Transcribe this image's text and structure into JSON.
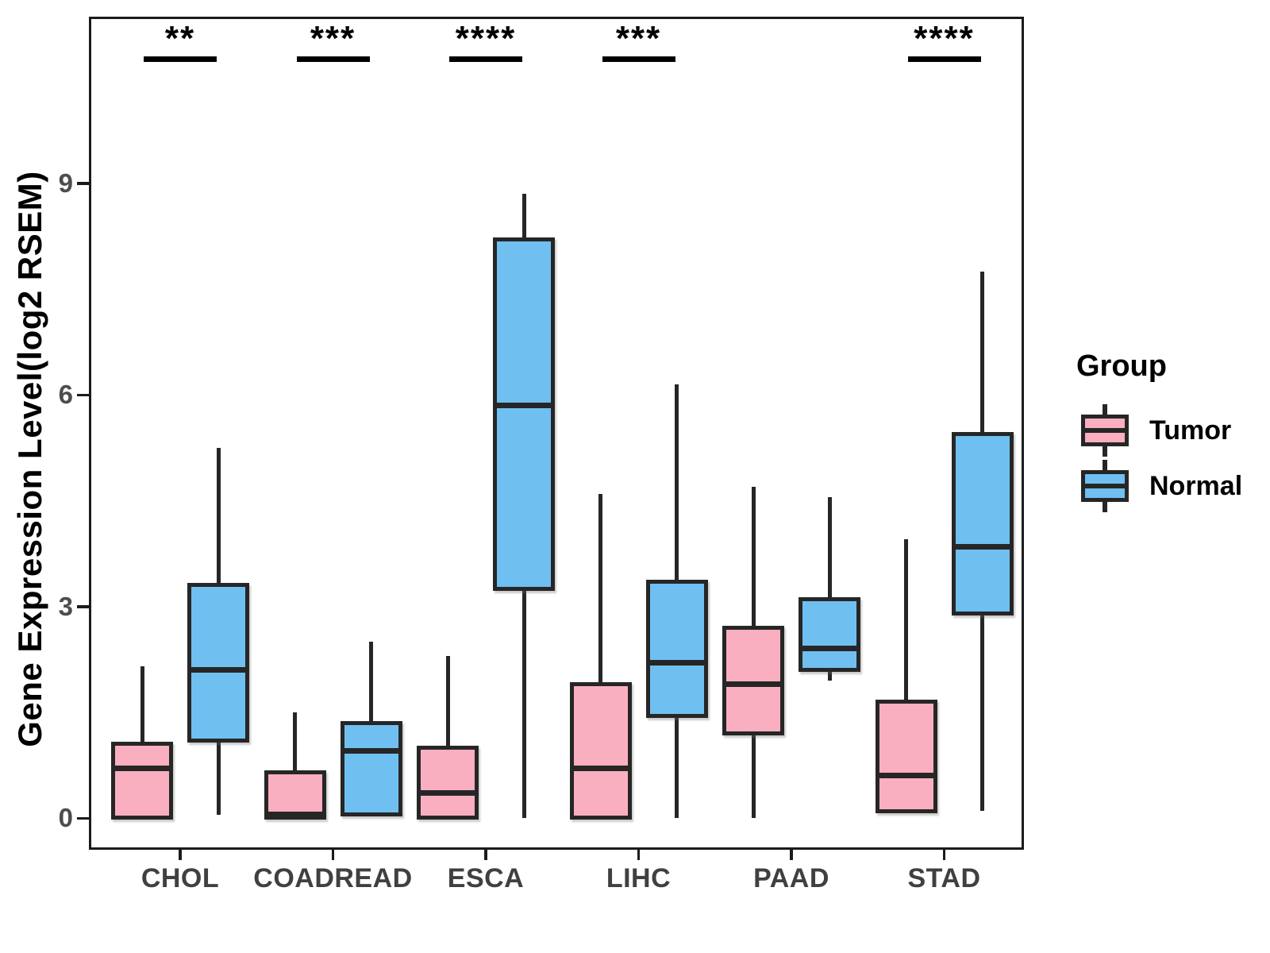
{
  "figure": {
    "background": "#ffffff"
  },
  "y_axis": {
    "title": "Gene Expression Level(log2 RSEM)",
    "tick_labels": [
      "0",
      "3",
      "6",
      "9"
    ]
  },
  "legend": {
    "title": "Group",
    "items": [
      {
        "label": "Tumor",
        "color": "#FAAFC0"
      },
      {
        "label": "Normal",
        "color": "#6FBFF1"
      }
    ]
  },
  "colors": {
    "tumor_fill": "#FAAFC0",
    "normal_fill": "#6FBFF1",
    "stroke": "#262626",
    "axis_text": "#4d4d4d",
    "significance": "#000000"
  },
  "chart_data": {
    "type": "boxplot",
    "title": "",
    "xlabel": "",
    "ylabel": "Gene Expression Level(log2 RSEM)",
    "categories": [
      "CHOL",
      "COADREAD",
      "ESCA",
      "LIHC",
      "PAAD",
      "STAD"
    ],
    "yticks": [
      0,
      3,
      6,
      9
    ],
    "ylim": [
      -0.45,
      11.35
    ],
    "grid": false,
    "legend_position": "right",
    "legend_title": "Group",
    "series": [
      {
        "name": "Tumor",
        "color": "#FAAFC0",
        "boxes": [
          {
            "category": "CHOL",
            "min": 0,
            "q1": 0,
            "median": 0.7,
            "q3": 1.05,
            "max": 2.15
          },
          {
            "category": "COADREAD",
            "min": 0,
            "q1": 0,
            "median": 0.05,
            "q3": 0.65,
            "max": 1.5
          },
          {
            "category": "ESCA",
            "min": 0,
            "q1": 0,
            "median": 0.35,
            "q3": 1.0,
            "max": 2.3
          },
          {
            "category": "LIHC",
            "min": 0,
            "q1": 0,
            "median": 0.7,
            "q3": 1.9,
            "max": 4.6
          },
          {
            "category": "PAAD",
            "min": 0,
            "q1": 1.2,
            "median": 1.9,
            "q3": 2.7,
            "max": 4.7
          },
          {
            "category": "STAD",
            "min": 0.1,
            "q1": 0.1,
            "median": 0.6,
            "q3": 1.65,
            "max": 3.95
          }
        ]
      },
      {
        "name": "Normal",
        "color": "#6FBFF1",
        "boxes": [
          {
            "category": "CHOL",
            "min": 0.05,
            "q1": 1.1,
            "median": 2.1,
            "q3": 3.3,
            "max": 5.25
          },
          {
            "category": "COADREAD",
            "min": 0.05,
            "q1": 0.05,
            "median": 0.95,
            "q3": 1.35,
            "max": 2.5
          },
          {
            "category": "ESCA",
            "min": 0,
            "q1": 3.25,
            "median": 5.85,
            "q3": 8.2,
            "max": 8.85
          },
          {
            "category": "LIHC",
            "min": 0,
            "q1": 1.45,
            "median": 2.2,
            "q3": 3.35,
            "max": 6.15
          },
          {
            "category": "PAAD",
            "min": 1.95,
            "q1": 2.1,
            "median": 2.4,
            "q3": 3.1,
            "max": 4.55
          },
          {
            "category": "STAD",
            "min": 0.1,
            "q1": 2.9,
            "median": 3.85,
            "q3": 5.45,
            "max": 7.75
          }
        ]
      }
    ],
    "significance": [
      {
        "category": "CHOL",
        "stars": "**"
      },
      {
        "category": "COADREAD",
        "stars": "***"
      },
      {
        "category": "ESCA",
        "stars": "****"
      },
      {
        "category": "LIHC",
        "stars": "***"
      },
      {
        "category": "STAD",
        "stars": "****"
      }
    ]
  }
}
